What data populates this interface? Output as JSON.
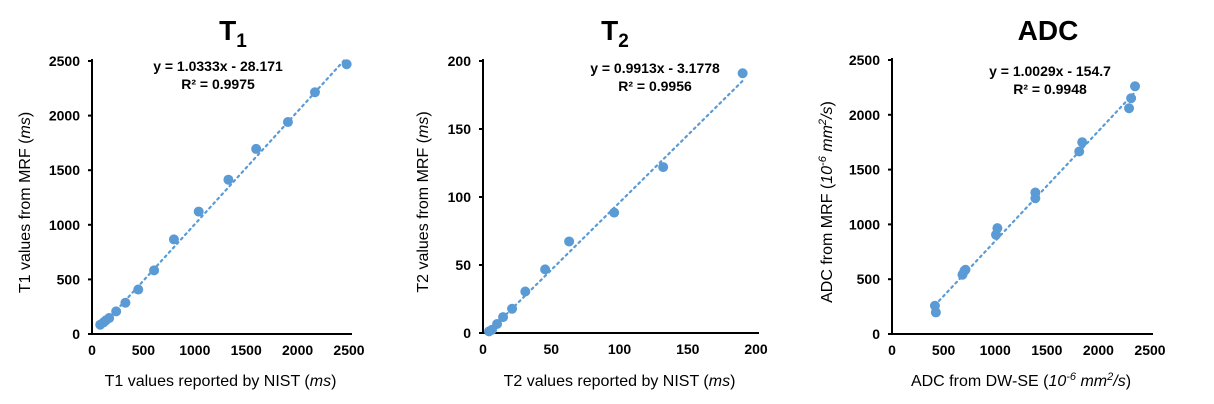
{
  "colors": {
    "point": "#5b9bd5",
    "trendline": "#5b9bd5",
    "axis": "#000000"
  },
  "chart_data": [
    {
      "type": "scatter",
      "title": {
        "main": "T",
        "sub": "1"
      },
      "xlabel": {
        "text": "T1 values reported by NIST (",
        "unit": [
          {
            "t": "ms"
          }
        ],
        "end": ")"
      },
      "ylabel": {
        "text": "T1 values from MRF (",
        "unit": [
          {
            "t": "ms"
          }
        ],
        "end": ")"
      },
      "xlim": [
        0,
        2500
      ],
      "ylim": [
        0,
        2500
      ],
      "xticks": [
        "0",
        "500",
        "1000",
        "1500",
        "2000",
        "2500"
      ],
      "yticks": [
        "0",
        "500",
        "1000",
        "1500",
        "2000",
        "2500"
      ],
      "equation": "y = 1.0333x - 28.171",
      "r2": "R² = 0.9975",
      "fit": {
        "slope": 1.0333,
        "intercept": -28.171
      },
      "grid": false,
      "x": [
        80,
        112,
        135,
        167,
        235,
        325,
        450,
        604,
        797,
        1038,
        1327,
        1597,
        1906,
        2169,
        2477
      ],
      "y": [
        85,
        106,
        125,
        146,
        207,
        286,
        407,
        583,
        866,
        1121,
        1413,
        1695,
        1941,
        2214,
        2470
      ]
    },
    {
      "type": "scatter",
      "title": {
        "main": "T",
        "sub": "2"
      },
      "xlabel": {
        "text": "T2 values reported by NIST (",
        "unit": [
          {
            "t": "ms"
          }
        ],
        "end": ")"
      },
      "ylabel": {
        "text": "T2 values from MRF (",
        "unit": [
          {
            "t": "ms"
          }
        ],
        "end": ")"
      },
      "xlim": [
        0,
        200
      ],
      "ylim": [
        0,
        200
      ],
      "xticks": [
        "0",
        "50",
        "100",
        "150",
        "200"
      ],
      "yticks": [
        "0",
        "50",
        "100",
        "150",
        "200"
      ],
      "equation": "y = 0.9913x - 3.1778",
      "r2": "R² = 0.9956",
      "fit": {
        "slope": 0.9913,
        "intercept": -3.1778
      },
      "grid": false,
      "x": [
        4.4,
        6.6,
        10.3,
        14.7,
        21.3,
        31.0,
        45.5,
        63.1,
        96.1,
        132.0,
        190.2
      ],
      "y": [
        1.2,
        2.4,
        6.6,
        11.7,
        17.8,
        30.5,
        46.8,
        67.3,
        88.5,
        122,
        191
      ]
    },
    {
      "type": "scatter",
      "title": {
        "main": "ADC",
        "sub": ""
      },
      "xlabel": {
        "text": "ADC from DW-SE (",
        "unit": [
          {
            "t": "10"
          },
          {
            "t": "-6",
            "sup": true
          },
          {
            "t": " mm"
          },
          {
            "t": "2",
            "sup": true
          },
          {
            "t": "/s"
          }
        ],
        "end": ")"
      },
      "ylabel": {
        "text": "ADC from MRF (",
        "unit": [
          {
            "t": "10"
          },
          {
            "t": "-6",
            "sup": true
          },
          {
            "t": " mm"
          },
          {
            "t": "2",
            "sup": true
          },
          {
            "t": "/s"
          }
        ],
        "end": ")"
      },
      "xlim": [
        0,
        2500
      ],
      "ylim": [
        0,
        2500
      ],
      "xticks": [
        "0",
        "500",
        "1000",
        "1500",
        "2000",
        "2500"
      ],
      "yticks": [
        "0",
        "500",
        "1000",
        "1500",
        "2000",
        "2500"
      ],
      "equation": "y = 1.0029x - 154.7",
      "r2": "R² = 0.9948",
      "fit": {
        "slope": 1.0029,
        "intercept": -154.7
      },
      "grid": false,
      "x": [
        416,
        425,
        683,
        702,
        712,
        1008,
        1021,
        1389,
        1389,
        1814,
        1843,
        2297,
        2317,
        2355
      ],
      "y": [
        258,
        197,
        541,
        577,
        586,
        905,
        966,
        1239,
        1291,
        1665,
        1750,
        2060,
        2151,
        2260
      ]
    }
  ]
}
